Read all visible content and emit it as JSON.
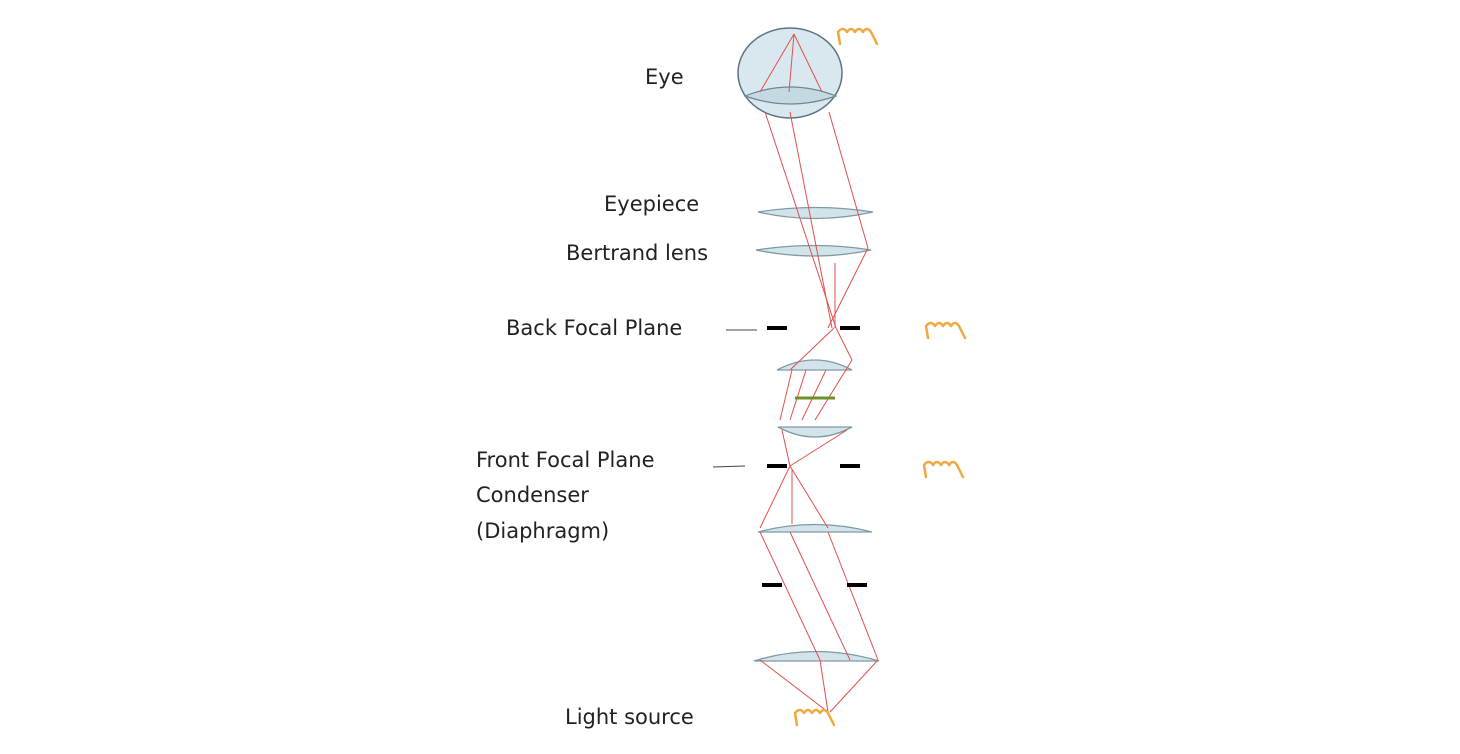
{
  "labels": {
    "eye": "Eye",
    "eyepiece": "Eyepiece",
    "bertrand_lens": "Bertrand lens",
    "back_focal_plane": "Back Focal Plane",
    "front_focal_plane_line1": "Front Focal Plane",
    "front_focal_plane_line2": "Condenser",
    "front_focal_plane_line3": "(Diaphragm)",
    "light_source": "Light source"
  },
  "colors": {
    "lens_fill": "#d3e3ea",
    "lens_stroke": "#7f9aa6",
    "ray": "#e0504a",
    "stop": "#000000",
    "specimen": "#6f8f2b",
    "filament": "#f0a840",
    "text": "#222222"
  },
  "icons": {
    "filament": "filament-icon"
  }
}
